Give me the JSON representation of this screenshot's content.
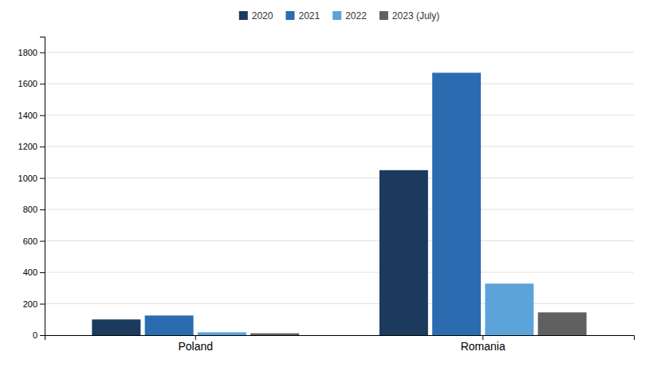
{
  "chart_data": {
    "type": "bar",
    "categories": [
      "Poland",
      "Romania"
    ],
    "series": [
      {
        "name": "2020",
        "color": "#1b3a5e",
        "values": [
          100,
          1050
        ]
      },
      {
        "name": "2021",
        "color": "#2b6cb0",
        "values": [
          125,
          1670
        ]
      },
      {
        "name": "2022",
        "color": "#5ba3d9",
        "values": [
          18,
          328
        ]
      },
      {
        "name": "2023 (July)",
        "color": "#606060",
        "values": [
          12,
          145
        ]
      }
    ],
    "ylim": [
      0,
      1900
    ],
    "yticks": [
      0,
      200,
      400,
      600,
      800,
      1000,
      1200,
      1400,
      1600,
      1800
    ],
    "grid": true,
    "legend": "top"
  }
}
